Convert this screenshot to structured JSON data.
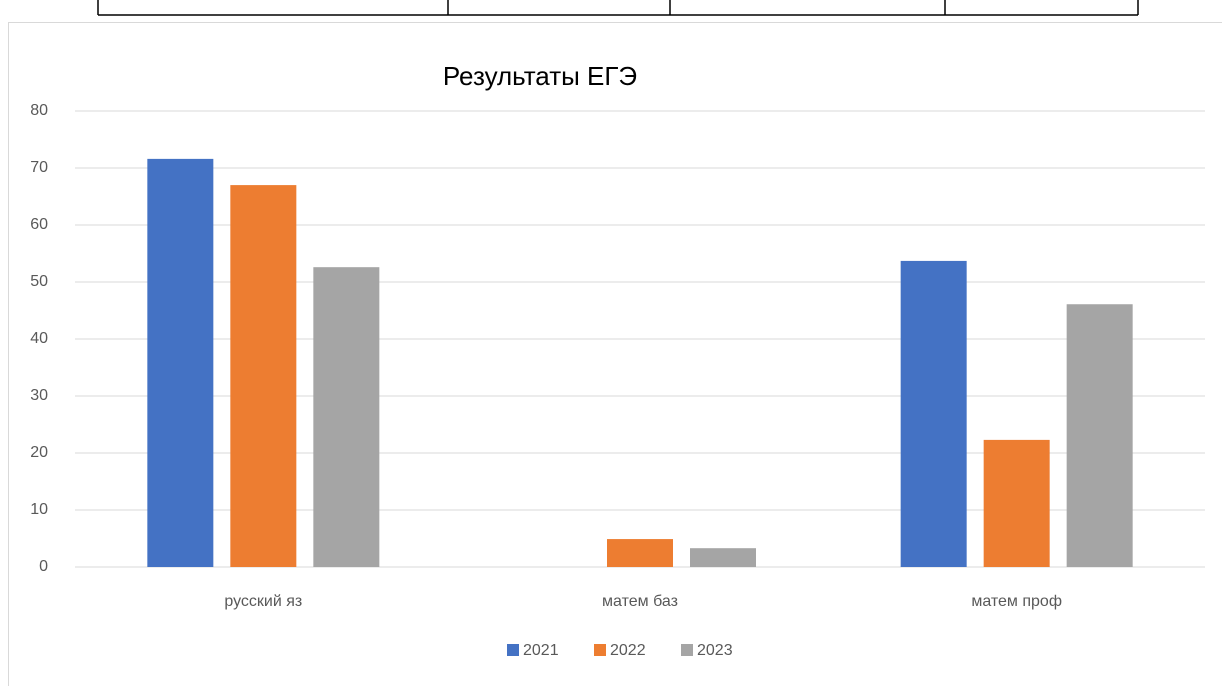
{
  "chart_data": {
    "type": "bar",
    "title": "Результаты ЕГЭ",
    "categories": [
      "русский яз",
      "матем баз",
      "матем проф"
    ],
    "series": [
      {
        "name": "2021",
        "color": "#4472c4",
        "values": [
          71.6,
          0,
          53.7
        ]
      },
      {
        "name": "2022",
        "color": "#ed7d31",
        "values": [
          67.0,
          4.9,
          22.3
        ]
      },
      {
        "name": "2023",
        "color": "#a5a5a5",
        "values": [
          52.6,
          3.3,
          46.1
        ]
      }
    ],
    "ylim": [
      0,
      80
    ],
    "yticks": [
      0,
      10,
      20,
      30,
      40,
      50,
      60,
      70,
      80
    ],
    "grid": true,
    "legend": "bottom"
  }
}
